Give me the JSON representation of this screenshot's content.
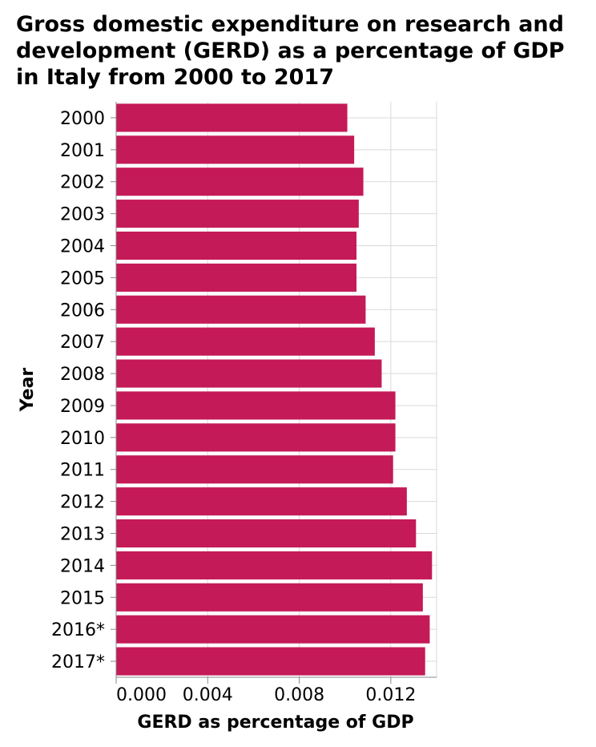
{
  "chart_data": {
    "type": "bar",
    "orientation": "horizontal",
    "title": "Gross domestic expenditure on research and development (GERD) as a percentage of GDP in Italy from 2000 to 2017",
    "xlabel": "GERD as percentage of GDP",
    "ylabel": "Year",
    "categories": [
      "2000",
      "2001",
      "2002",
      "2003",
      "2004",
      "2005",
      "2006",
      "2007",
      "2008",
      "2009",
      "2010",
      "2011",
      "2012",
      "2013",
      "2014",
      "2015",
      "2016*",
      "2017*"
    ],
    "values": [
      0.0101,
      0.0104,
      0.0108,
      0.0106,
      0.0105,
      0.0105,
      0.0109,
      0.0113,
      0.0116,
      0.0122,
      0.0122,
      0.0121,
      0.0127,
      0.0131,
      0.0138,
      0.0134,
      0.0137,
      0.0135
    ],
    "xlim": [
      0,
      0.014
    ],
    "xticks": [
      0,
      0.004,
      0.008,
      0.012
    ],
    "xtick_labels": [
      "0.000",
      "0.004",
      "0.008",
      "0.012"
    ],
    "grid": true,
    "bar_color": "#c41a57",
    "grid_color": "#d9d9d9"
  }
}
